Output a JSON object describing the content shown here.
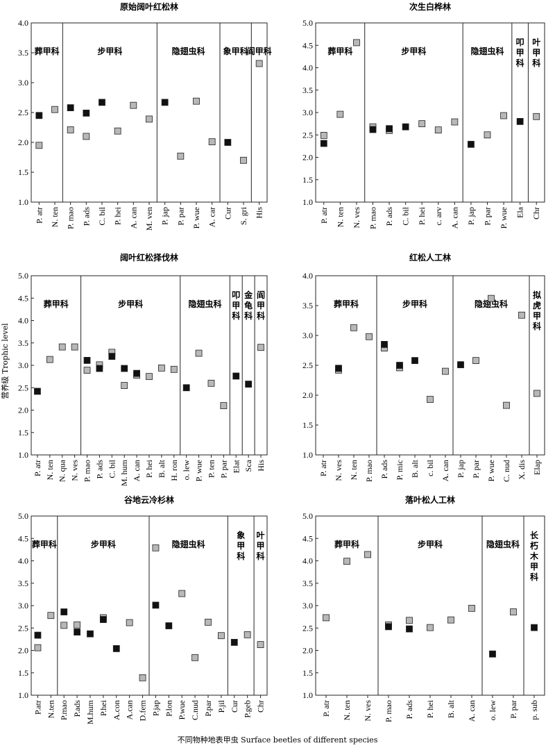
{
  "figure": {
    "ylabel": "营养级 Trophic level",
    "xlabel": "不同物种地表甲虫 Surface beetles of different species"
  },
  "chart_data": [
    {
      "type": "scatter",
      "title": "原始阔叶红松林",
      "ylim": [
        1.0,
        4.0
      ],
      "yticks": [
        "1.0",
        "1.5",
        "2.0",
        "2.5",
        "3.0",
        "3.5",
        "4.0"
      ],
      "categories": [
        "P. atr",
        "N. ten",
        "P. mao",
        "P. ads",
        "C. bil",
        "P. hei",
        "A. can",
        "M. ven",
        "P. jap",
        "P. par",
        "P. wue",
        "A. car",
        "Cur",
        "S. gri",
        "His"
      ],
      "series": [
        {
          "marker": "black",
          "color": "#111111",
          "values": [
            2.45,
            null,
            2.58,
            2.49,
            2.67,
            null,
            null,
            null,
            2.67,
            null,
            null,
            null,
            2.0,
            null,
            null
          ]
        },
        {
          "marker": "gray",
          "color": "#b8b8b8",
          "values": [
            1.95,
            2.55,
            2.21,
            2.1,
            null,
            2.19,
            2.62,
            2.39,
            null,
            1.77,
            2.69,
            2.01,
            null,
            1.7,
            3.32
          ]
        }
      ],
      "families": [
        {
          "name": "葬甲科",
          "start": 0,
          "end": 1
        },
        {
          "name": "步甲科",
          "start": 2,
          "end": 7
        },
        {
          "name": "隐翅虫科",
          "start": 8,
          "end": 11
        },
        {
          "name": "象甲科",
          "start": 12,
          "end": 13
        },
        {
          "name": "阎甲科",
          "start": 14,
          "end": 14
        }
      ]
    },
    {
      "type": "scatter",
      "title": "次生白桦林",
      "ylim": [
        1.0,
        5.0
      ],
      "yticks": [
        "1.0",
        "1.5",
        "2.0",
        "2.5",
        "3.0",
        "3.5",
        "4.0",
        "4.5",
        "5.0"
      ],
      "categories": [
        "P. atr",
        "N. ten",
        "N. ves",
        "P. mao",
        "P. ads",
        "C. bil",
        "P. hei",
        "c. arv",
        "A. can",
        "P. jap",
        "P. par",
        "P. wue",
        "Ela",
        "Chr"
      ],
      "series": [
        {
          "marker": "black",
          "color": "#111111",
          "values": [
            2.31,
            null,
            null,
            2.62,
            2.64,
            2.68,
            null,
            null,
            null,
            2.29,
            null,
            null,
            2.8,
            null
          ]
        },
        {
          "marker": "gray",
          "color": "#b8b8b8",
          "values": [
            2.49,
            2.96,
            4.56,
            2.68,
            2.6,
            null,
            2.75,
            2.61,
            2.79,
            null,
            2.5,
            2.93,
            null,
            2.91
          ]
        }
      ],
      "families": [
        {
          "name": "葬甲科",
          "start": 0,
          "end": 2
        },
        {
          "name": "步甲科",
          "start": 3,
          "end": 8
        },
        {
          "name": "隐翅虫科",
          "start": 9,
          "end": 11
        },
        {
          "name": "叩\n甲\n科",
          "start": 12,
          "end": 12
        },
        {
          "name": "叶\n甲\n科",
          "start": 13,
          "end": 13
        }
      ]
    },
    {
      "type": "scatter",
      "title": "阔叶红松择伐林",
      "ylim": [
        1.0,
        5.0
      ],
      "yticks": [
        "1.0",
        "1.5",
        "2.0",
        "2.5",
        "3.0",
        "3.5",
        "4.0",
        "4.5",
        "5.0"
      ],
      "categories": [
        "P. atr",
        "N. ten",
        "N. qua",
        "N. ves",
        "P. mao",
        "P. ads",
        "C. bil",
        "M. hum",
        "A. can",
        "P. hei",
        "B. alt",
        "H. ron",
        "o. lew",
        "P. wue",
        "P. ten",
        "P. par",
        "Elat",
        "Sca",
        "His"
      ],
      "series": [
        {
          "marker": "black",
          "color": "#111111",
          "values": [
            2.42,
            null,
            null,
            null,
            3.11,
            2.93,
            3.2,
            2.93,
            2.82,
            null,
            null,
            null,
            2.5,
            null,
            null,
            null,
            2.76,
            2.58,
            null
          ]
        },
        {
          "marker": "gray",
          "color": "#b8b8b8",
          "values": [
            null,
            3.13,
            3.41,
            3.41,
            2.89,
            3.01,
            3.29,
            2.55,
            2.78,
            2.75,
            2.94,
            2.91,
            null,
            3.27,
            2.6,
            2.1,
            null,
            null,
            3.4
          ]
        }
      ],
      "families": [
        {
          "name": "葬甲科",
          "start": 0,
          "end": 3
        },
        {
          "name": "步甲科",
          "start": 4,
          "end": 11
        },
        {
          "name": "隐翅虫科",
          "start": 12,
          "end": 15
        },
        {
          "name": "叩\n甲\n科",
          "start": 16,
          "end": 16
        },
        {
          "name": "金\n龟\n科",
          "start": 17,
          "end": 17
        },
        {
          "name": "阎\n甲\n科",
          "start": 18,
          "end": 18
        }
      ]
    },
    {
      "type": "scatter",
      "title": "红松人工林",
      "ylim": [
        1.0,
        4.0
      ],
      "yticks": [
        "1.0",
        "1.5",
        "2.0",
        "2.5",
        "3.0",
        "3.5",
        "4.0"
      ],
      "categories": [
        "P. atr",
        "N. ves",
        "N. ten",
        "P. mao",
        "P. ads",
        "P. mic",
        "B. alt",
        "c. bil",
        "A. can",
        "P. jap",
        "P. par",
        "P. wue",
        "C. nud",
        "X. dis",
        "Elap"
      ],
      "series": [
        {
          "marker": "black",
          "color": "#111111",
          "values": [
            null,
            2.45,
            null,
            null,
            2.85,
            2.5,
            2.58,
            null,
            null,
            2.51,
            null,
            null,
            null,
            null,
            null
          ]
        },
        {
          "marker": "gray",
          "color": "#b8b8b8",
          "values": [
            null,
            2.42,
            3.13,
            2.98,
            2.79,
            2.46,
            null,
            1.93,
            2.4,
            null,
            2.58,
            3.62,
            1.83,
            3.34,
            2.03
          ]
        }
      ],
      "families": [
        {
          "name": "葬甲科",
          "start": 0,
          "end": 3
        },
        {
          "name": "步甲科",
          "start": 4,
          "end": 8
        },
        {
          "name": "隐翅虫科",
          "start": 9,
          "end": 13
        },
        {
          "name": "拟\n虎\n甲\n科",
          "start": 14,
          "end": 14
        }
      ]
    },
    {
      "type": "scatter",
      "title": "谷地云冷杉林",
      "ylim": [
        1.0,
        5.0
      ],
      "yticks": [
        "1.0",
        "1.5",
        "2.0",
        "2.5",
        "3.0",
        "3.5",
        "4.0",
        "4.5",
        "5.0"
      ],
      "categories": [
        "P.atr",
        "N.ten",
        "P.mao",
        "P.ads",
        "M.hum",
        "P.hei",
        "A.con",
        "A.can",
        "D.fem",
        "P.jap",
        "P.lon",
        "P.wue",
        "C.nud",
        "P.par",
        "P.jil",
        "Cur",
        "P.geb",
        "Chr"
      ],
      "series": [
        {
          "marker": "black",
          "color": "#111111",
          "values": [
            2.34,
            null,
            2.86,
            2.41,
            2.37,
            2.69,
            2.04,
            null,
            null,
            3.01,
            2.55,
            null,
            null,
            null,
            null,
            2.18,
            null,
            null
          ]
        },
        {
          "marker": "gray",
          "color": "#b8b8b8",
          "values": [
            2.06,
            2.78,
            2.56,
            2.57,
            null,
            2.73,
            null,
            2.62,
            1.39,
            4.29,
            null,
            3.27,
            1.84,
            2.63,
            2.33,
            null,
            2.35,
            2.13
          ]
        }
      ],
      "families": [
        {
          "name": "葬甲科",
          "start": 0,
          "end": 1
        },
        {
          "name": "步甲科",
          "start": 2,
          "end": 8
        },
        {
          "name": "隐翅虫科",
          "start": 9,
          "end": 14
        },
        {
          "name": "象\n甲\n科",
          "start": 15,
          "end": 16
        },
        {
          "name": "叶\n甲\n科",
          "start": 17,
          "end": 17
        }
      ]
    },
    {
      "type": "scatter",
      "title": "落叶松人工林",
      "ylim": [
        1.0,
        5.0
      ],
      "yticks": [
        "1.0",
        "1.5",
        "2.0",
        "2.5",
        "3.0",
        "3.5",
        "4.0",
        "4.5",
        "5.0"
      ],
      "categories": [
        "P. atr",
        "N. ten",
        "N. ves",
        "P. mao",
        "P. ads",
        "P. hei",
        "B. alt",
        "A. can",
        "o. lew",
        "P. par",
        "p. sub"
      ],
      "series": [
        {
          "marker": "black",
          "color": "#111111",
          "values": [
            null,
            null,
            null,
            2.53,
            2.48,
            null,
            null,
            null,
            1.92,
            null,
            2.51
          ]
        },
        {
          "marker": "gray",
          "color": "#b8b8b8",
          "values": [
            2.73,
            3.99,
            4.14,
            2.57,
            2.67,
            2.51,
            2.68,
            2.94,
            null,
            2.86,
            null
          ]
        }
      ],
      "families": [
        {
          "name": "葬甲科",
          "start": 0,
          "end": 2
        },
        {
          "name": "步甲科",
          "start": 3,
          "end": 7
        },
        {
          "name": "隐翅虫科",
          "start": 8,
          "end": 9
        },
        {
          "name": "长\n朽\n木\n甲\n科",
          "start": 10,
          "end": 10
        }
      ]
    }
  ]
}
